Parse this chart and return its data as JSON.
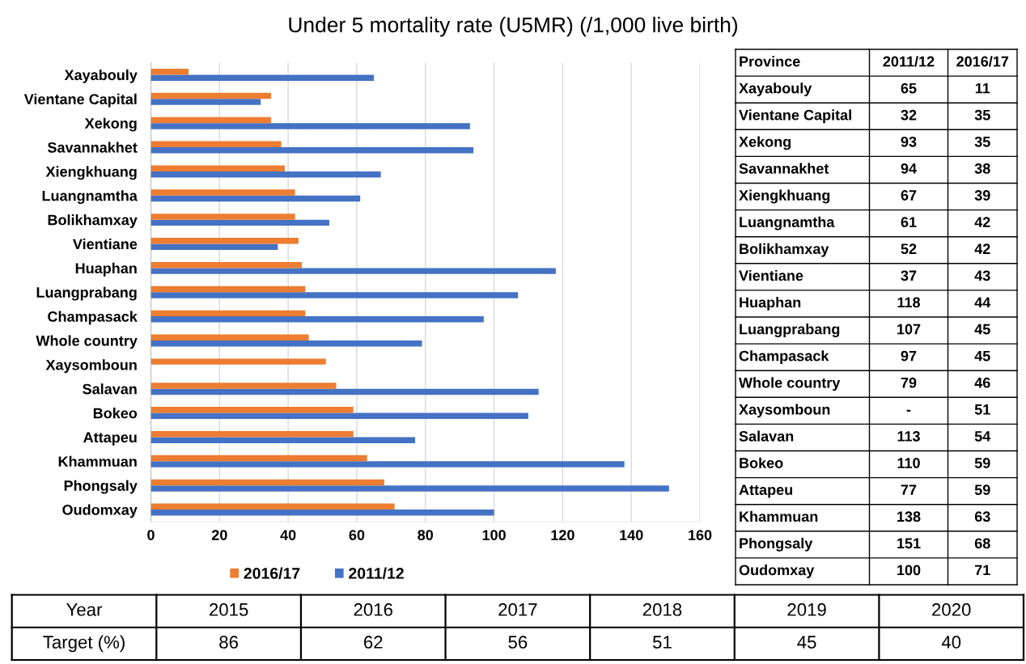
{
  "chart_data": [
    {
      "type": "bar",
      "orientation": "horizontal",
      "title": "Under 5 mortality rate (U5MR) (/1,000 live birth)",
      "categories": [
        "Xayabouly",
        "Vientane Capital",
        "Xekong",
        "Savannakhet",
        "Xiengkhuang",
        "Luangnamtha",
        "Bolikhamxay",
        "Vientiane",
        "Huaphan",
        "Luangprabang",
        "Champasack",
        "Whole country",
        "Xaysomboun",
        "Salavan",
        "Bokeo",
        "Attapeu",
        "Khammuan",
        "Phongsaly",
        "Oudomxay"
      ],
      "series": [
        {
          "name": "2011/12",
          "color": "#4472c4",
          "values": [
            65,
            32,
            93,
            94,
            67,
            61,
            52,
            37,
            118,
            107,
            97,
            79,
            null,
            113,
            110,
            77,
            138,
            151,
            100
          ]
        },
        {
          "name": "2016/17",
          "color": "#ed7d31",
          "values": [
            11,
            35,
            35,
            38,
            39,
            42,
            42,
            43,
            44,
            45,
            45,
            46,
            51,
            54,
            59,
            59,
            63,
            68,
            71
          ]
        }
      ],
      "xlim": [
        0,
        160
      ],
      "xticks": [
        0,
        20,
        40,
        60,
        80,
        100,
        120,
        140,
        160
      ],
      "grid": "x",
      "legend": "bottom"
    },
    {
      "type": "heatmap",
      "ylabel": "Province",
      "categories": [
        "2011/12",
        "2016/17"
      ],
      "y_categories": [
        "Xayabouly",
        "Vientane Capital",
        "Xekong",
        "Savannakhet",
        "Xiengkhuang",
        "Luangnamtha",
        "Bolikhamxay",
        "Vientiane",
        "Huaphan",
        "Luangprabang",
        "Champasack",
        "Whole country",
        "Xaysomboun",
        "Salavan",
        "Bokeo",
        "Attapeu",
        "Khammuan",
        "Phongsaly",
        "Oudomxay"
      ],
      "cells": [
        [
          65,
          11
        ],
        [
          32,
          35
        ],
        [
          93,
          35
        ],
        [
          94,
          38
        ],
        [
          67,
          39
        ],
        [
          61,
          42
        ],
        [
          52,
          42
        ],
        [
          37,
          43
        ],
        [
          118,
          44
        ],
        [
          107,
          45
        ],
        [
          97,
          45
        ],
        [
          79,
          46
        ],
        [
          null,
          51
        ],
        [
          113,
          54
        ],
        [
          110,
          59
        ],
        [
          77,
          59
        ],
        [
          138,
          63
        ],
        [
          151,
          68
        ],
        [
          100,
          71
        ]
      ],
      "cell_labels": [
        [
          "65",
          "11"
        ],
        [
          "32",
          "35"
        ],
        [
          "93",
          "35"
        ],
        [
          "94",
          "38"
        ],
        [
          "67",
          "39"
        ],
        [
          "61",
          "42"
        ],
        [
          "52",
          "42"
        ],
        [
          "37",
          "43"
        ],
        [
          "118",
          "44"
        ],
        [
          "107",
          "45"
        ],
        [
          "97",
          "45"
        ],
        [
          "79",
          "46"
        ],
        [
          "-",
          "51"
        ],
        [
          "113",
          "54"
        ],
        [
          "110",
          "59"
        ],
        [
          "77",
          "59"
        ],
        [
          "138",
          "63"
        ],
        [
          "151",
          "68"
        ],
        [
          "100",
          "71"
        ]
      ],
      "color": "#ffffff",
      "data_labels": true
    },
    {
      "type": "heatmap",
      "xlabel": "Year",
      "categories": [
        "2015",
        "2016",
        "2017",
        "2018",
        "2019",
        "2020"
      ],
      "y_categories": [
        "Target (%)"
      ],
      "cells": [
        [
          86,
          62,
          56,
          51,
          45,
          40
        ]
      ],
      "color": "#ffffff",
      "data_labels": true
    }
  ]
}
